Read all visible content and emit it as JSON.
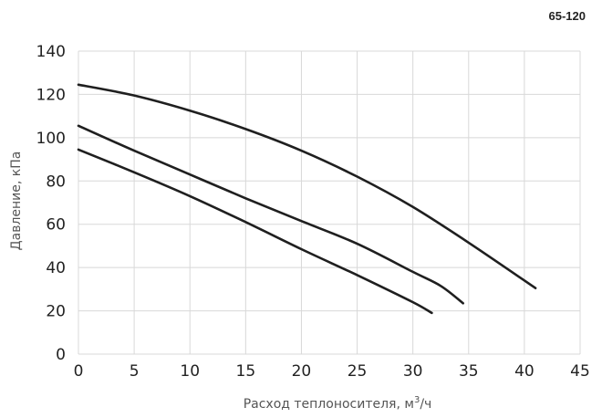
{
  "model_label": "65-120",
  "chart_data": {
    "type": "line",
    "title": "",
    "xlabel": "Расход теплоносителя, м",
    "xlabel_sup": "3",
    "xlabel_suffix": "/ч",
    "ylabel": "Давление, кПа",
    "xlim": [
      0,
      45
    ],
    "ylim": [
      0,
      140
    ],
    "x_ticks": [
      0,
      5,
      10,
      15,
      20,
      25,
      30,
      35,
      40,
      45
    ],
    "y_ticks": [
      0,
      20,
      40,
      60,
      80,
      100,
      120,
      140
    ],
    "grid": true,
    "legend": "none",
    "series": [
      {
        "x": [
          0,
          5,
          10,
          15,
          20,
          25,
          30,
          35,
          41
        ],
        "y": [
          124.5,
          119.5,
          112.5,
          104,
          94,
          82,
          68,
          51.5,
          30.5
        ]
      },
      {
        "x": [
          0,
          5,
          10,
          15,
          20,
          25,
          30,
          32.5,
          34.5
        ],
        "y": [
          105.5,
          94,
          83,
          72,
          61.5,
          51,
          38,
          31.5,
          23.5
        ]
      },
      {
        "x": [
          0,
          5,
          10,
          15,
          20,
          25,
          30,
          31.7
        ],
        "y": [
          94.5,
          84,
          73,
          61,
          48.5,
          36.5,
          24,
          19
        ]
      }
    ],
    "colors": {
      "line": "#1f1f1f",
      "grid": "#d8d8d8",
      "text": "#222222"
    }
  }
}
